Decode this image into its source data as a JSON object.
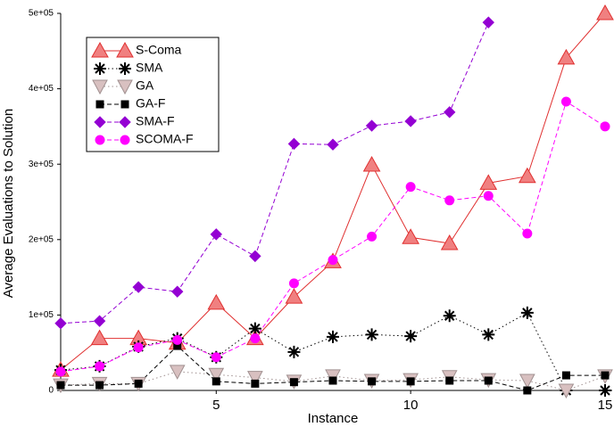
{
  "chart_data": {
    "type": "line",
    "xlabel": "Instance",
    "ylabel": "Average Evaluations to Solution",
    "x": [
      1,
      2,
      3,
      4,
      5,
      6,
      7,
      8,
      9,
      10,
      11,
      12,
      13,
      14,
      15
    ],
    "xlim": [
      1,
      15
    ],
    "xticks": [
      5,
      10,
      15
    ],
    "ylim": [
      0,
      500000
    ],
    "yticks": [
      0,
      {
        "value": 100000,
        "label": "1e+05"
      },
      {
        "value": 200000,
        "label": "2e+05"
      },
      {
        "value": 300000,
        "label": "3e+05"
      },
      {
        "value": 400000,
        "label": "4e+05"
      },
      {
        "value": 500000,
        "label": "5e+05"
      }
    ],
    "legend": "top-left",
    "series": [
      {
        "name": "S-Coma",
        "color": "#e03030",
        "fill": "#f08080",
        "marker": "triangle",
        "dash": "solid",
        "values": [
          27000,
          69000,
          69000,
          63000,
          116000,
          69000,
          124000,
          171000,
          299000,
          203000,
          195000,
          275000,
          284000,
          441000,
          500000
        ]
      },
      {
        "name": "SMA",
        "color": "#000000",
        "fill": "#000000",
        "marker": "asterisk",
        "dash": "dotted",
        "values": [
          27000,
          32000,
          58000,
          69000,
          44000,
          82000,
          51000,
          71000,
          74000,
          72000,
          99000,
          74000,
          103000,
          0,
          0
        ]
      },
      {
        "name": "GA",
        "color": "#a09090",
        "fill": "#d8c0c0",
        "marker": "down-triangle",
        "dash": "dotted",
        "values": [
          7000,
          9000,
          9000,
          25000,
          21000,
          17000,
          12000,
          19000,
          13000,
          14000,
          18000,
          14000,
          13000,
          0,
          19000
        ]
      },
      {
        "name": "GA-F",
        "color": "#000000",
        "fill": "#000000",
        "marker": "square",
        "dash": "dashed",
        "values": [
          7000,
          7000,
          9000,
          59000,
          12000,
          9000,
          11000,
          13000,
          12000,
          12000,
          13000,
          13000,
          0,
          20000,
          20000
        ]
      },
      {
        "name": "SMA-F",
        "color": "#9400d3",
        "fill": "#9400d3",
        "marker": "diamond",
        "dash": "dashed",
        "values": [
          89000,
          92000,
          137000,
          131000,
          207000,
          178000,
          327000,
          326000,
          351000,
          357000,
          369000,
          488000,
          null,
          null,
          null
        ]
      },
      {
        "name": "SCOMA-F",
        "color": "#ff00ff",
        "fill": "#ff00ff",
        "marker": "circle",
        "dash": "dashed",
        "values": [
          25000,
          32000,
          57000,
          67000,
          44000,
          69000,
          142000,
          173000,
          204000,
          270000,
          252000,
          258000,
          208000,
          383000,
          350000
        ]
      }
    ]
  }
}
